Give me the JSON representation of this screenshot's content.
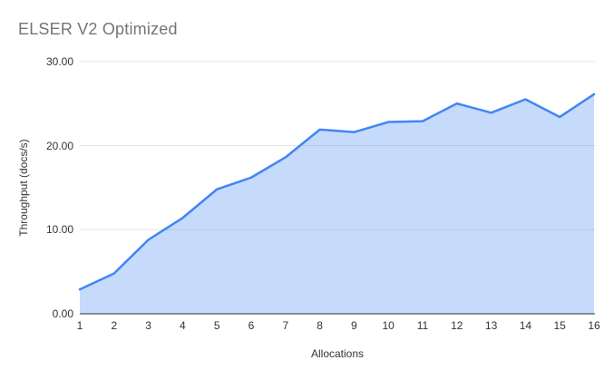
{
  "chart_data": {
    "type": "area",
    "title": "ELSER V2 Optimized",
    "xlabel": "Allocations",
    "ylabel": "Throughput (docs/s)",
    "categories": [
      "1",
      "2",
      "3",
      "4",
      "5",
      "6",
      "7",
      "8",
      "9",
      "10",
      "11",
      "12",
      "13",
      "14",
      "15",
      "16"
    ],
    "values": [
      2.9,
      4.8,
      8.8,
      11.4,
      14.8,
      16.2,
      18.6,
      21.9,
      21.6,
      22.8,
      22.9,
      25.0,
      23.9,
      25.5,
      23.4,
      26.1
    ],
    "ylim": [
      0,
      30
    ],
    "yticks": [
      {
        "value": 0,
        "label": "0.00"
      },
      {
        "value": 10,
        "label": "10.00"
      },
      {
        "value": 20,
        "label": "20.00"
      },
      {
        "value": 30,
        "label": "30.00"
      }
    ],
    "grid": true,
    "legend": "none",
    "colors": {
      "line": "#4285f4",
      "fill": "rgba(66,133,244,0.3)",
      "grid": "#e6e6e6",
      "axis": "#333333",
      "title_text": "#757575",
      "tick_text": "#333333"
    }
  }
}
